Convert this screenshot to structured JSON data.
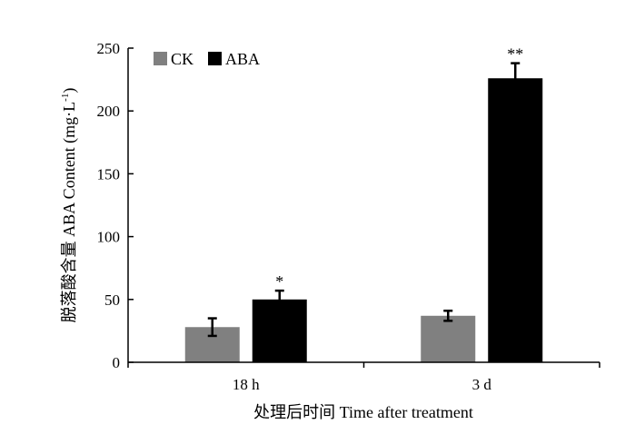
{
  "chart_data": {
    "type": "bar",
    "title": "",
    "xlabel": "处理后时间 Time after treatment",
    "ylabel_prefix": "脱落酸含量 ABA Content (mg·L",
    "ylabel_exponent": "-1",
    "ylabel_suffix": ")",
    "categories": [
      "18 h",
      "3 d"
    ],
    "series": [
      {
        "name": "CK",
        "color": "#808080",
        "values": [
          28,
          37
        ],
        "errors": [
          7,
          4
        ],
        "annotations": [
          "",
          ""
        ]
      },
      {
        "name": "ABA",
        "color": "#000000",
        "values": [
          50,
          226
        ],
        "errors": [
          7,
          12
        ],
        "annotations": [
          "*",
          "**"
        ]
      }
    ],
    "ylim": [
      0,
      250
    ],
    "yticks": [
      0,
      50,
      100,
      150,
      200,
      250
    ],
    "grid": false,
    "legend_position": "top-left"
  }
}
